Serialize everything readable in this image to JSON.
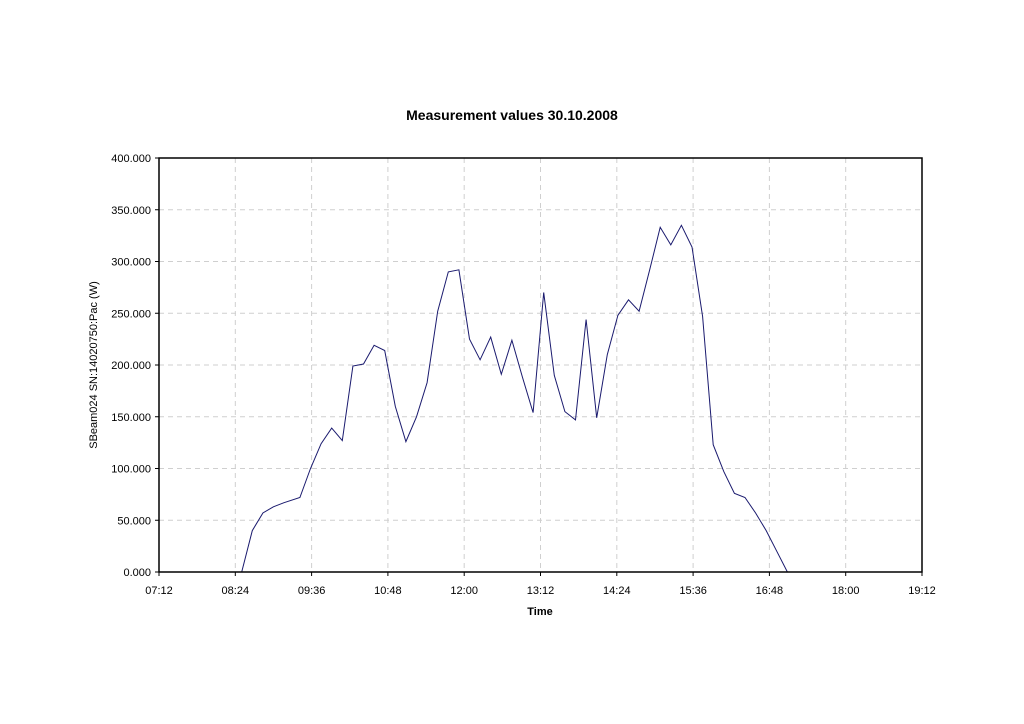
{
  "chart_data": {
    "type": "line",
    "title": "Measurement values 30.10.2008",
    "xlabel": "Time",
    "ylabel": "SBeam024 SN:14020750:Pac (W)",
    "xlim": [
      "07:12",
      "19:12"
    ],
    "ylim": [
      0,
      400
    ],
    "x_ticks": [
      "07:12",
      "08:24",
      "09:36",
      "10:48",
      "12:00",
      "13:12",
      "14:24",
      "15:36",
      "16:48",
      "18:00",
      "19:12"
    ],
    "y_ticks": [
      "0.000",
      "50.000",
      "100.000",
      "150.000",
      "200.000",
      "250.000",
      "300.000",
      "350.000",
      "400.000"
    ],
    "grid": true,
    "line_color": "#1a1a6e",
    "series": [
      {
        "x": [
          "08:30",
          "08:40",
          "08:50",
          "09:00",
          "09:10",
          "09:25",
          "09:35",
          "09:45",
          "09:55",
          "10:05",
          "10:15",
          "10:25",
          "10:35",
          "10:45",
          "10:55",
          "11:05",
          "11:15",
          "11:25",
          "11:35",
          "11:45",
          "11:55",
          "12:05",
          "12:15",
          "12:25",
          "12:35",
          "12:45",
          "12:55",
          "13:05",
          "13:15",
          "13:25",
          "13:35",
          "13:45",
          "13:55",
          "14:05",
          "14:15",
          "14:25",
          "14:35",
          "14:45",
          "14:55",
          "15:05",
          "15:15",
          "15:25",
          "15:35",
          "15:45",
          "15:55",
          "16:05",
          "16:15",
          "16:25",
          "16:35",
          "16:45",
          "16:55",
          "17:05"
        ],
        "values": [
          0,
          40,
          57,
          63,
          67,
          72,
          100,
          124,
          139,
          127,
          199,
          201,
          219,
          214,
          160,
          126,
          150,
          183,
          252,
          290,
          292,
          225,
          205,
          227,
          191,
          224,
          188,
          154,
          270,
          190,
          155,
          147,
          244,
          149,
          210,
          248,
          263,
          252,
          292,
          333,
          316,
          335,
          314,
          247,
          123,
          97,
          76,
          72,
          57,
          40,
          20,
          0
        ]
      }
    ]
  }
}
